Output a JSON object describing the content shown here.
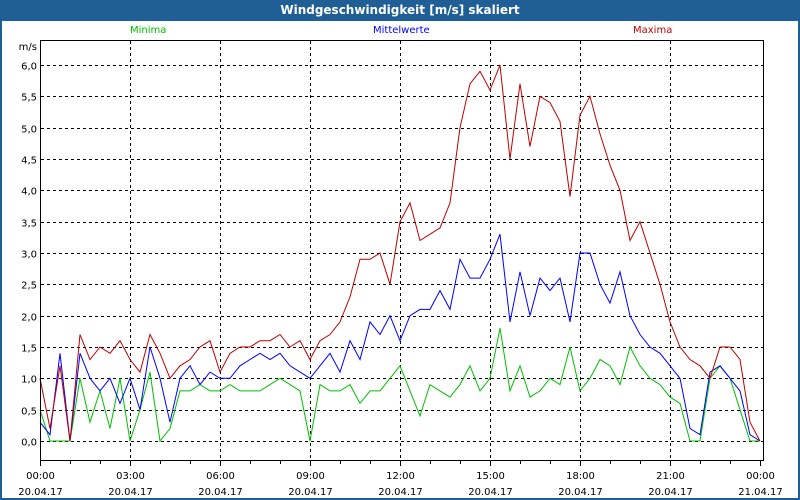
{
  "window": {
    "title": "Windgeschwindigkeit [m/s] skaliert"
  },
  "chart_data": {
    "type": "line",
    "title": "Windgeschwindigkeit [m/s] skaliert",
    "ylabel": "m/s",
    "xlabel": "",
    "ylim": [
      0,
      6.0
    ],
    "xlim_hours": [
      0,
      24
    ],
    "grid": true,
    "y_ticks": [
      "0,0",
      "0,5",
      "1,0",
      "1,5",
      "2,0",
      "2,5",
      "3,0",
      "3,5",
      "4,0",
      "4,5",
      "5,0",
      "5,5",
      "6,0"
    ],
    "x_ticks": [
      {
        "time": "00:00",
        "date": "20.04.17"
      },
      {
        "time": "03:00",
        "date": "20.04.17"
      },
      {
        "time": "06:00",
        "date": "20.04.17"
      },
      {
        "time": "09:00",
        "date": "20.04.17"
      },
      {
        "time": "12:00",
        "date": "20.04.17"
      },
      {
        "time": "15:00",
        "date": "20.04.17"
      },
      {
        "time": "18:00",
        "date": "20.04.17"
      },
      {
        "time": "21:00",
        "date": "20.04.17"
      },
      {
        "time": "00:00",
        "date": "21.04.17"
      }
    ],
    "x_step_minutes": 20,
    "series": [
      {
        "name": "Minima",
        "color": "#00c000",
        "values": [
          0.5,
          0.0,
          0.0,
          0.0,
          1.0,
          0.3,
          0.8,
          0.2,
          1.0,
          0.0,
          0.5,
          1.1,
          0.0,
          0.2,
          0.8,
          0.8,
          0.9,
          0.8,
          0.8,
          0.9,
          0.8,
          0.8,
          0.8,
          0.9,
          1.0,
          0.9,
          0.8,
          0.0,
          0.9,
          0.8,
          0.8,
          0.9,
          0.6,
          0.8,
          0.8,
          1.0,
          1.2,
          0.8,
          0.4,
          0.9,
          0.8,
          0.7,
          0.9,
          1.2,
          0.8,
          1.0,
          1.8,
          0.8,
          1.2,
          0.7,
          0.8,
          1.0,
          0.9,
          1.5,
          0.8,
          1.0,
          1.3,
          1.2,
          0.9,
          1.5,
          1.2,
          1.0,
          0.9,
          0.7,
          0.6,
          0.0,
          0.0,
          1.0,
          1.2,
          1.0,
          0.5,
          0.0,
          0.0
        ]
      },
      {
        "name": "Mittelwerte",
        "color": "#0000ff",
        "values": [
          0.3,
          0.1,
          1.4,
          0.0,
          1.4,
          1.0,
          0.8,
          1.0,
          0.6,
          1.0,
          0.5,
          1.5,
          1.0,
          0.3,
          1.0,
          1.2,
          0.9,
          1.1,
          1.0,
          1.0,
          1.2,
          1.3,
          1.4,
          1.3,
          1.4,
          1.2,
          1.1,
          1.0,
          1.2,
          1.4,
          1.1,
          1.6,
          1.3,
          1.9,
          1.7,
          2.0,
          1.6,
          2.0,
          2.1,
          2.1,
          2.4,
          2.1,
          2.9,
          2.6,
          2.6,
          2.9,
          3.3,
          1.9,
          2.7,
          2.0,
          2.6,
          2.4,
          2.6,
          1.9,
          3.0,
          3.0,
          2.5,
          2.2,
          2.7,
          2.0,
          1.7,
          1.5,
          1.4,
          1.2,
          1.0,
          0.2,
          0.1,
          1.1,
          1.2,
          1.0,
          0.8,
          0.1,
          0.0
        ]
      },
      {
        "name": "Maxima",
        "color": "#c00000",
        "values": [
          1.0,
          0.2,
          1.2,
          0.0,
          1.7,
          1.3,
          1.5,
          1.4,
          1.6,
          1.3,
          1.1,
          1.7,
          1.4,
          1.0,
          1.2,
          1.3,
          1.5,
          1.6,
          1.1,
          1.4,
          1.5,
          1.5,
          1.6,
          1.6,
          1.7,
          1.5,
          1.6,
          1.3,
          1.6,
          1.7,
          1.9,
          2.3,
          2.9,
          2.9,
          3.0,
          2.5,
          3.5,
          3.8,
          3.2,
          3.3,
          3.4,
          3.8,
          5.0,
          5.7,
          5.9,
          5.6,
          6.0,
          4.5,
          5.7,
          4.7,
          5.5,
          5.4,
          5.1,
          3.9,
          5.2,
          5.5,
          4.9,
          4.4,
          4.0,
          3.2,
          3.5,
          3.0,
          2.5,
          1.9,
          1.5,
          1.3,
          1.2,
          1.0,
          1.5,
          1.5,
          1.3,
          0.3,
          0.0
        ]
      }
    ]
  }
}
